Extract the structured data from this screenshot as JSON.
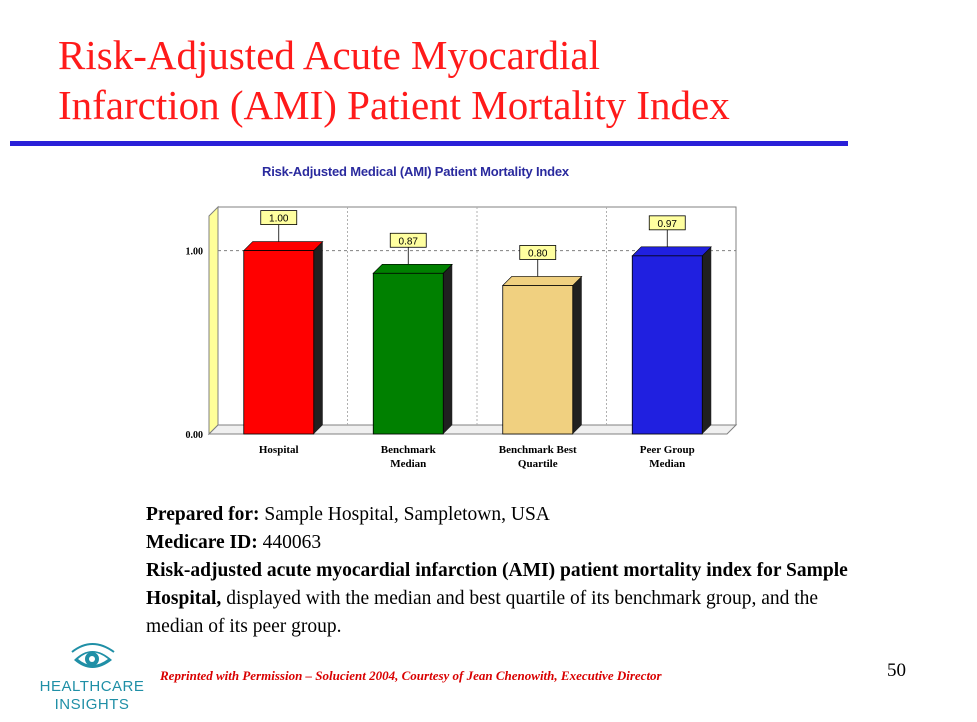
{
  "slide": {
    "title_line1": "Risk-Adjusted Acute Myocardial",
    "title_line2": "Infarction (AMI) Patient Mortality Index",
    "page_number": "50",
    "footnote": "Reprinted with Permission – Solucient 2004, Courtesy of Jean Chenowith, Executive Director",
    "accent_color": "#ff1a1a",
    "rule_color": "#2a20d8"
  },
  "caption": {
    "prepared_label": "Prepared for:",
    "prepared_value": " Sample Hospital, Sampletown, USA",
    "medicare_label": "Medicare ID:",
    "medicare_value": " 440063",
    "desc_bold": "Risk-adjusted acute myocardial infarction (AMI) patient mortality index for Sample Hospital,",
    "desc_rest": " displayed with the median and best quartile of its benchmark group, and the median of its peer group."
  },
  "logo": {
    "line1": "HEALTHCARE",
    "line2": "INSIGHTS",
    "icon": "eye-icon"
  },
  "chart_data": {
    "type": "bar",
    "title": "Risk-Adjusted Medical (AMI) Patient Mortality Index",
    "categories": [
      [
        "Hospital"
      ],
      [
        "Benchmark",
        "Median"
      ],
      [
        "Benchmark Best",
        "Quartile"
      ],
      [
        "Peer Group",
        "Median"
      ]
    ],
    "values": [
      1.0,
      0.87,
      0.8,
      0.97
    ],
    "value_labels": [
      "1.00",
      "0.87",
      "0.80",
      "0.97"
    ],
    "colors": [
      "#ff0000",
      "#008000",
      "#f0d080",
      "#2020e0"
    ],
    "ylim": [
      0,
      1.25
    ],
    "yticks": [
      0.0,
      1.0
    ],
    "ytick_labels": [
      "0.00",
      "1.00"
    ],
    "reference_line": 1.0,
    "xlabel": "",
    "ylabel": ""
  }
}
